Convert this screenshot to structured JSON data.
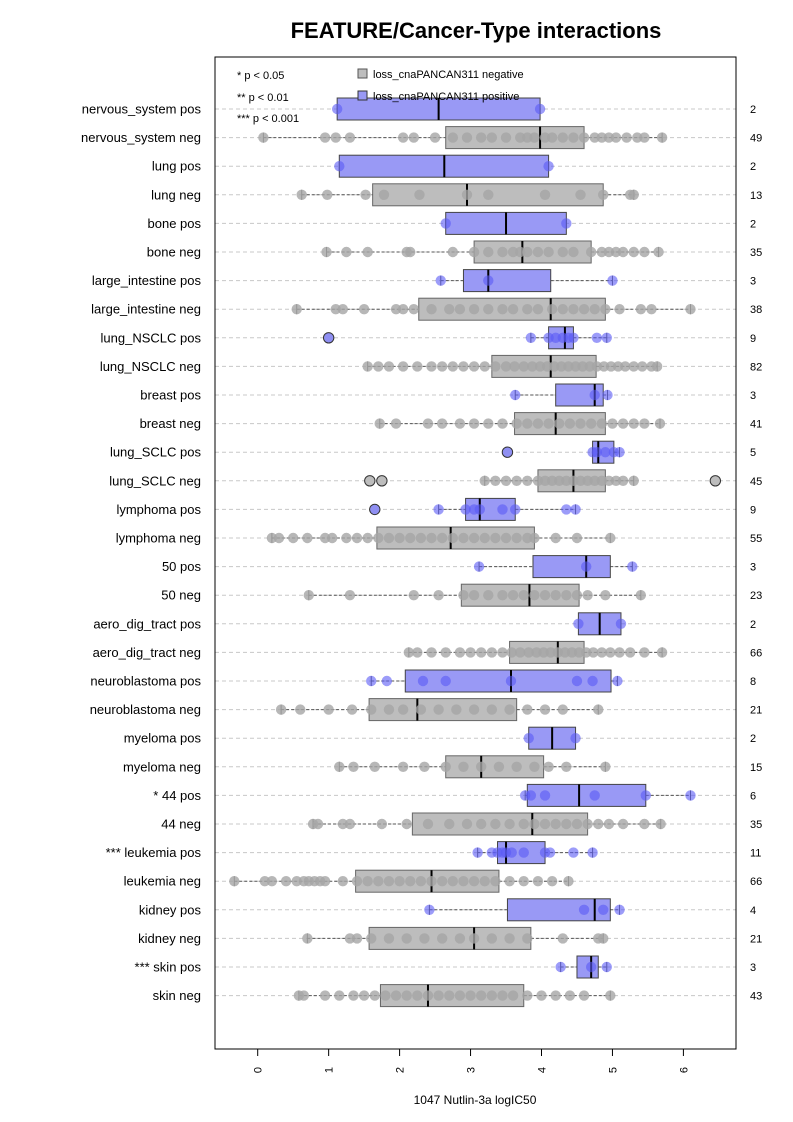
{
  "chart_data": {
    "type": "box",
    "title": "FEATURE/Cancer-Type interactions",
    "xlabel": "1047 Nutlin-3a logIC50",
    "xlim": [
      -0.6,
      6.7
    ],
    "xticks": [
      "0",
      "1",
      "2",
      "3",
      "4",
      "5",
      "6"
    ],
    "grid": "horizontal dashed",
    "significance_legend": [
      "* p < 0.05",
      "** p < 0.01",
      "*** p < 0.001"
    ],
    "series": [
      {
        "name": "loss_cnaPANCAN311 negative",
        "color": "#bdbdbd",
        "stroke": "#888888"
      },
      {
        "name": "loss_cnaPANCAN311 positive",
        "color": "#9999f5",
        "stroke": "#5a5acd"
      }
    ],
    "rows": [
      {
        "label": "nervous_system pos",
        "group": "pos",
        "n": "2",
        "q1": 1.12,
        "median": 2.55,
        "q3": 3.98,
        "wmin": 1.12,
        "wmax": 3.98,
        "points": [
          1.12,
          3.98
        ],
        "outliers": []
      },
      {
        "label": "nervous_system neg",
        "group": "neg",
        "n": "49",
        "q1": 2.65,
        "median": 3.98,
        "q3": 4.6,
        "wmin": 0.08,
        "wmax": 5.7,
        "points": [
          0.08,
          0.95,
          1.1,
          1.3,
          2.05,
          2.2,
          2.5,
          2.75,
          2.95,
          3.15,
          3.3,
          3.5,
          3.7,
          3.8,
          3.9,
          4.05,
          4.15,
          4.3,
          4.45,
          4.6,
          4.75,
          4.85,
          4.95,
          5.05,
          5.2,
          5.35,
          5.45,
          5.7
        ],
        "outliers": []
      },
      {
        "label": "lung pos",
        "group": "pos",
        "n": "2",
        "q1": 1.15,
        "median": 2.63,
        "q3": 4.1,
        "wmin": 1.15,
        "wmax": 4.1,
        "points": [
          1.15,
          4.1
        ],
        "outliers": []
      },
      {
        "label": "lung neg",
        "group": "neg",
        "n": "13",
        "q1": 1.62,
        "median": 2.95,
        "q3": 4.87,
        "wmin": 0.62,
        "wmax": 5.3,
        "points": [
          0.62,
          0.98,
          1.52,
          1.78,
          2.28,
          2.95,
          3.25,
          4.05,
          4.55,
          4.87,
          5.25,
          5.3
        ],
        "outliers": []
      },
      {
        "label": "bone pos",
        "group": "pos",
        "n": "2",
        "q1": 2.65,
        "median": 3.5,
        "q3": 4.35,
        "wmin": 2.65,
        "wmax": 4.35,
        "points": [
          2.65,
          4.35
        ],
        "outliers": []
      },
      {
        "label": "bone neg",
        "group": "neg",
        "n": "35",
        "q1": 3.05,
        "median": 3.73,
        "q3": 4.7,
        "wmin": 0.97,
        "wmax": 5.65,
        "points": [
          0.97,
          1.25,
          1.55,
          2.1,
          2.15,
          2.75,
          3.05,
          3.25,
          3.45,
          3.6,
          3.7,
          3.8,
          3.95,
          4.1,
          4.3,
          4.45,
          4.7,
          4.85,
          4.95,
          5.05,
          5.15,
          5.3,
          5.45,
          5.65
        ],
        "outliers": []
      },
      {
        "label": "large_intestine pos",
        "group": "pos",
        "n": "3",
        "q1": 2.9,
        "median": 3.25,
        "q3": 4.13,
        "wmin": 2.58,
        "wmax": 5.0,
        "points": [
          2.58,
          3.25,
          5.0
        ],
        "outliers": []
      },
      {
        "label": "large_intestine neg",
        "group": "neg",
        "n": "38",
        "q1": 2.27,
        "median": 4.13,
        "q3": 4.9,
        "wmin": 0.55,
        "wmax": 6.1,
        "points": [
          0.55,
          1.1,
          1.2,
          1.5,
          1.95,
          2.05,
          2.2,
          2.45,
          2.7,
          2.85,
          3.05,
          3.25,
          3.45,
          3.6,
          3.8,
          3.95,
          4.15,
          4.3,
          4.45,
          4.6,
          4.75,
          4.9,
          5.1,
          5.4,
          5.55,
          6.1
        ],
        "outliers": []
      },
      {
        "label": "lung_NSCLC pos",
        "group": "pos",
        "n": "9",
        "q1": 4.1,
        "median": 4.33,
        "q3": 4.45,
        "wmin": 3.85,
        "wmax": 4.92,
        "points": [
          3.85,
          4.1,
          4.2,
          4.3,
          4.38,
          4.45,
          4.78,
          4.92
        ],
        "outliers": [
          1.0
        ]
      },
      {
        "label": "lung_NSCLC neg",
        "group": "neg",
        "n": "82",
        "q1": 3.3,
        "median": 4.13,
        "q3": 4.77,
        "wmin": 1.55,
        "wmax": 5.63,
        "points": [
          1.55,
          1.7,
          1.85,
          2.05,
          2.25,
          2.45,
          2.6,
          2.75,
          2.9,
          3.05,
          3.2,
          3.35,
          3.5,
          3.62,
          3.75,
          3.87,
          3.98,
          4.08,
          4.18,
          4.28,
          4.38,
          4.48,
          4.58,
          4.68,
          4.78,
          4.88,
          4.98,
          5.08,
          5.18,
          5.3,
          5.42,
          5.55,
          5.63
        ],
        "outliers": []
      },
      {
        "label": "breast pos",
        "group": "pos",
        "n": "3",
        "q1": 4.2,
        "median": 4.75,
        "q3": 4.87,
        "wmin": 3.63,
        "wmax": 4.93,
        "points": [
          3.63,
          4.75,
          4.93
        ],
        "outliers": []
      },
      {
        "label": "breast neg",
        "group": "neg",
        "n": "41",
        "q1": 3.62,
        "median": 4.2,
        "q3": 4.9,
        "wmin": 1.72,
        "wmax": 5.67,
        "points": [
          1.72,
          1.95,
          2.4,
          2.6,
          2.85,
          3.05,
          3.25,
          3.45,
          3.65,
          3.8,
          3.95,
          4.1,
          4.25,
          4.4,
          4.55,
          4.7,
          4.85,
          5.0,
          5.15,
          5.3,
          5.45,
          5.67
        ],
        "outliers": []
      },
      {
        "label": "lung_SCLC pos",
        "group": "pos",
        "n": "5",
        "q1": 4.72,
        "median": 4.8,
        "q3": 5.02,
        "wmin": 4.72,
        "wmax": 5.1,
        "points": [
          4.72,
          4.78,
          4.9,
          5.02,
          5.1
        ],
        "outliers": [
          3.52
        ]
      },
      {
        "label": "lung_SCLC neg",
        "group": "neg",
        "n": "45",
        "q1": 3.95,
        "median": 4.45,
        "q3": 4.9,
        "wmin": 3.2,
        "wmax": 5.3,
        "points": [
          3.2,
          3.35,
          3.5,
          3.65,
          3.8,
          3.95,
          4.05,
          4.15,
          4.25,
          4.35,
          4.45,
          4.55,
          4.65,
          4.75,
          4.85,
          4.95,
          5.05,
          5.15,
          5.3
        ],
        "outliers": [
          1.58,
          1.75,
          6.45
        ]
      },
      {
        "label": "lymphoma pos",
        "group": "pos",
        "n": "9",
        "q1": 2.93,
        "median": 3.13,
        "q3": 3.63,
        "wmin": 2.55,
        "wmax": 4.48,
        "points": [
          2.55,
          2.93,
          3.05,
          3.13,
          3.45,
          3.63,
          4.35,
          4.48
        ],
        "outliers": [
          1.65
        ]
      },
      {
        "label": "lymphoma neg",
        "group": "neg",
        "n": "55",
        "q1": 1.68,
        "median": 2.72,
        "q3": 3.9,
        "wmin": 0.2,
        "wmax": 4.97,
        "points": [
          0.2,
          0.3,
          0.5,
          0.7,
          0.95,
          1.05,
          1.25,
          1.4,
          1.55,
          1.7,
          1.85,
          2.0,
          2.15,
          2.3,
          2.45,
          2.6,
          2.75,
          2.9,
          3.05,
          3.2,
          3.35,
          3.5,
          3.65,
          3.8,
          3.9,
          4.2,
          4.5,
          4.97
        ],
        "outliers": []
      },
      {
        "label": "50 pos",
        "group": "pos",
        "n": "3",
        "q1": 3.88,
        "median": 4.63,
        "q3": 4.97,
        "wmin": 3.12,
        "wmax": 5.28,
        "points": [
          3.12,
          4.63,
          5.28
        ],
        "outliers": []
      },
      {
        "label": "50 neg",
        "group": "neg",
        "n": "23",
        "q1": 2.87,
        "median": 3.83,
        "q3": 4.53,
        "wmin": 0.72,
        "wmax": 5.4,
        "points": [
          0.72,
          1.3,
          2.2,
          2.55,
          2.9,
          3.05,
          3.25,
          3.45,
          3.6,
          3.75,
          3.9,
          4.05,
          4.2,
          4.35,
          4.5,
          4.65,
          4.9,
          5.4
        ],
        "outliers": []
      },
      {
        "label": "aero_dig_tract pos",
        "group": "pos",
        "n": "2",
        "q1": 4.52,
        "median": 4.82,
        "q3": 5.12,
        "wmin": 4.52,
        "wmax": 5.12,
        "points": [
          4.52,
          5.12
        ],
        "outliers": []
      },
      {
        "label": "aero_dig_tract neg",
        "group": "neg",
        "n": "66",
        "q1": 3.55,
        "median": 4.23,
        "q3": 4.6,
        "wmin": 2.13,
        "wmax": 5.7,
        "points": [
          2.13,
          2.25,
          2.45,
          2.65,
          2.85,
          3.0,
          3.15,
          3.3,
          3.45,
          3.58,
          3.7,
          3.82,
          3.93,
          4.03,
          4.13,
          4.23,
          4.33,
          4.43,
          4.53,
          4.63,
          4.73,
          4.85,
          4.97,
          5.1,
          5.25,
          5.45,
          5.7
        ],
        "outliers": []
      },
      {
        "label": "neuroblastoma pos",
        "group": "pos",
        "n": "8",
        "q1": 2.08,
        "median": 3.57,
        "q3": 4.98,
        "wmin": 1.6,
        "wmax": 5.07,
        "points": [
          1.6,
          1.82,
          2.33,
          2.65,
          3.57,
          4.5,
          4.72,
          5.07
        ],
        "outliers": []
      },
      {
        "label": "neuroblastoma neg",
        "group": "neg",
        "n": "21",
        "q1": 1.57,
        "median": 2.25,
        "q3": 3.65,
        "wmin": 0.33,
        "wmax": 4.8,
        "points": [
          0.33,
          0.6,
          1.0,
          1.33,
          1.6,
          1.85,
          2.05,
          2.3,
          2.55,
          2.8,
          3.05,
          3.3,
          3.55,
          3.8,
          4.05,
          4.3,
          4.8
        ],
        "outliers": []
      },
      {
        "label": "myeloma pos",
        "group": "pos",
        "n": "2",
        "q1": 3.82,
        "median": 4.15,
        "q3": 4.48,
        "wmin": 3.82,
        "wmax": 4.48,
        "points": [
          3.82,
          4.48
        ],
        "outliers": []
      },
      {
        "label": "myeloma neg",
        "group": "neg",
        "n": "15",
        "q1": 2.65,
        "median": 3.15,
        "q3": 4.03,
        "wmin": 1.15,
        "wmax": 4.9,
        "points": [
          1.15,
          1.35,
          1.65,
          2.05,
          2.35,
          2.65,
          2.9,
          3.15,
          3.4,
          3.65,
          3.9,
          4.1,
          4.35,
          4.9
        ],
        "outliers": []
      },
      {
        "label": "* 44 pos",
        "group": "pos",
        "n": "6",
        "q1": 3.8,
        "median": 4.53,
        "q3": 5.47,
        "wmin": 3.77,
        "wmax": 6.1,
        "points": [
          3.77,
          3.85,
          4.05,
          4.75,
          5.47,
          6.1
        ],
        "outliers": []
      },
      {
        "label": "44 neg",
        "group": "neg",
        "n": "35",
        "q1": 2.18,
        "median": 3.87,
        "q3": 4.65,
        "wmin": 0.78,
        "wmax": 5.68,
        "points": [
          0.78,
          0.85,
          1.2,
          1.3,
          1.75,
          2.1,
          2.4,
          2.7,
          2.95,
          3.15,
          3.35,
          3.55,
          3.75,
          3.9,
          4.05,
          4.2,
          4.35,
          4.5,
          4.65,
          4.8,
          4.95,
          5.15,
          5.45,
          5.68
        ],
        "outliers": []
      },
      {
        "label": "*** leukemia pos",
        "group": "pos",
        "n": "11",
        "q1": 3.38,
        "median": 3.5,
        "q3": 4.05,
        "wmin": 3.1,
        "wmax": 4.72,
        "points": [
          3.1,
          3.3,
          3.38,
          3.45,
          3.5,
          3.58,
          3.75,
          4.05,
          4.12,
          4.45,
          4.72
        ],
        "outliers": []
      },
      {
        "label": "leukemia neg",
        "group": "neg",
        "n": "66",
        "q1": 1.38,
        "median": 2.45,
        "q3": 3.4,
        "wmin": -0.33,
        "wmax": 4.38,
        "points": [
          -0.33,
          0.1,
          0.2,
          0.4,
          0.55,
          0.65,
          0.72,
          0.8,
          0.88,
          0.95,
          1.2,
          1.4,
          1.55,
          1.7,
          1.85,
          2.0,
          2.15,
          2.3,
          2.45,
          2.6,
          2.75,
          2.9,
          3.05,
          3.2,
          3.35,
          3.55,
          3.75,
          3.95,
          4.15,
          4.38
        ],
        "outliers": []
      },
      {
        "label": "kidney pos",
        "group": "pos",
        "n": "4",
        "q1": 3.52,
        "median": 4.75,
        "q3": 4.97,
        "wmin": 2.42,
        "wmax": 5.1,
        "points": [
          2.42,
          4.6,
          4.87,
          5.1
        ],
        "outliers": []
      },
      {
        "label": "kidney neg",
        "group": "neg",
        "n": "21",
        "q1": 1.57,
        "median": 3.05,
        "q3": 3.85,
        "wmin": 0.7,
        "wmax": 4.87,
        "points": [
          0.7,
          1.3,
          1.4,
          1.6,
          1.85,
          2.1,
          2.35,
          2.6,
          2.85,
          3.05,
          3.3,
          3.55,
          3.8,
          4.3,
          4.8,
          4.87
        ],
        "outliers": []
      },
      {
        "label": "*** skin pos",
        "group": "pos",
        "n": "3",
        "q1": 4.5,
        "median": 4.7,
        "q3": 4.8,
        "wmin": 4.27,
        "wmax": 4.92,
        "points": [
          4.27,
          4.7,
          4.92
        ],
        "outliers": []
      },
      {
        "label": "skin neg",
        "group": "neg",
        "n": "43",
        "q1": 1.73,
        "median": 2.4,
        "q3": 3.75,
        "wmin": 0.58,
        "wmax": 4.97,
        "points": [
          0.58,
          0.65,
          0.95,
          1.15,
          1.35,
          1.5,
          1.65,
          1.8,
          1.95,
          2.1,
          2.25,
          2.4,
          2.55,
          2.7,
          2.85,
          3.0,
          3.15,
          3.3,
          3.45,
          3.6,
          3.8,
          4.0,
          4.2,
          4.4,
          4.6,
          4.97
        ],
        "outliers": []
      }
    ]
  }
}
